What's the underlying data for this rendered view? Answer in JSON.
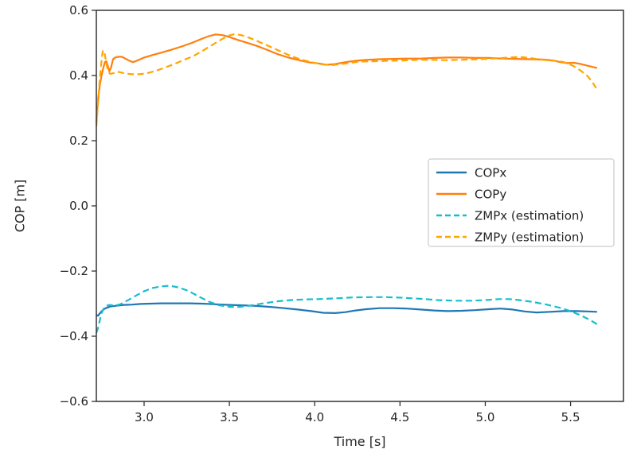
{
  "figure": {
    "background": "#ffffff",
    "text_color": "#262626",
    "spine_color": "#333333"
  },
  "chart_data": {
    "type": "line",
    "title": "",
    "xlabel": "Time [s]",
    "ylabel": "COP [m]",
    "xlim": [
      2.72,
      5.81
    ],
    "ylim": [
      -0.6,
      0.6
    ],
    "xticks": [
      3.0,
      3.5,
      4.0,
      4.5,
      5.0,
      5.5
    ],
    "yticks": [
      -0.6,
      -0.4,
      -0.2,
      0.0,
      0.2,
      0.4,
      0.6
    ],
    "grid": false,
    "legend": {
      "position": "center-right",
      "border_color": "#cccccc",
      "fill": "#ffffff"
    },
    "series": [
      {
        "name": "COPx",
        "color": "#1f77b4",
        "style": "solid",
        "points": [
          [
            2.72,
            -0.335
          ],
          [
            2.73,
            -0.337
          ],
          [
            2.74,
            -0.33
          ],
          [
            2.75,
            -0.324
          ],
          [
            2.77,
            -0.315
          ],
          [
            2.8,
            -0.309
          ],
          [
            2.84,
            -0.306
          ],
          [
            2.88,
            -0.304
          ],
          [
            2.93,
            -0.303
          ],
          [
            2.98,
            -0.301
          ],
          [
            3.04,
            -0.3
          ],
          [
            3.1,
            -0.299
          ],
          [
            3.18,
            -0.299
          ],
          [
            3.26,
            -0.299
          ],
          [
            3.34,
            -0.3
          ],
          [
            3.42,
            -0.302
          ],
          [
            3.5,
            -0.304
          ],
          [
            3.58,
            -0.305
          ],
          [
            3.66,
            -0.307
          ],
          [
            3.74,
            -0.31
          ],
          [
            3.82,
            -0.314
          ],
          [
            3.9,
            -0.318
          ],
          [
            3.98,
            -0.323
          ],
          [
            4.05,
            -0.328
          ],
          [
            4.12,
            -0.329
          ],
          [
            4.18,
            -0.326
          ],
          [
            4.24,
            -0.321
          ],
          [
            4.3,
            -0.317
          ],
          [
            4.38,
            -0.314
          ],
          [
            4.46,
            -0.314
          ],
          [
            4.54,
            -0.315
          ],
          [
            4.62,
            -0.318
          ],
          [
            4.7,
            -0.321
          ],
          [
            4.78,
            -0.323
          ],
          [
            4.86,
            -0.322
          ],
          [
            4.94,
            -0.32
          ],
          [
            5.02,
            -0.317
          ],
          [
            5.09,
            -0.315
          ],
          [
            5.16,
            -0.318
          ],
          [
            5.23,
            -0.324
          ],
          [
            5.3,
            -0.327
          ],
          [
            5.38,
            -0.325
          ],
          [
            5.46,
            -0.323
          ],
          [
            5.54,
            -0.323
          ],
          [
            5.6,
            -0.324
          ],
          [
            5.655,
            -0.325
          ]
        ]
      },
      {
        "name": "COPy",
        "color": "#ff7f0e",
        "style": "solid",
        "points": [
          [
            2.72,
            0.255
          ],
          [
            2.726,
            0.3
          ],
          [
            2.733,
            0.34
          ],
          [
            2.741,
            0.372
          ],
          [
            2.75,
            0.398
          ],
          [
            2.76,
            0.422
          ],
          [
            2.77,
            0.441
          ],
          [
            2.778,
            0.444
          ],
          [
            2.787,
            0.43
          ],
          [
            2.796,
            0.413
          ],
          [
            2.806,
            0.424
          ],
          [
            2.818,
            0.45
          ],
          [
            2.83,
            0.455
          ],
          [
            2.845,
            0.457
          ],
          [
            2.86,
            0.458
          ],
          [
            2.875,
            0.456
          ],
          [
            2.89,
            0.452
          ],
          [
            2.91,
            0.446
          ],
          [
            2.935,
            0.441
          ],
          [
            2.96,
            0.446
          ],
          [
            3.0,
            0.455
          ],
          [
            3.05,
            0.463
          ],
          [
            3.1,
            0.47
          ],
          [
            3.16,
            0.479
          ],
          [
            3.22,
            0.489
          ],
          [
            3.28,
            0.5
          ],
          [
            3.33,
            0.511
          ],
          [
            3.38,
            0.521
          ],
          [
            3.42,
            0.526
          ],
          [
            3.46,
            0.524
          ],
          [
            3.5,
            0.518
          ],
          [
            3.55,
            0.509
          ],
          [
            3.6,
            0.501
          ],
          [
            3.66,
            0.491
          ],
          [
            3.72,
            0.479
          ],
          [
            3.78,
            0.466
          ],
          [
            3.84,
            0.456
          ],
          [
            3.9,
            0.448
          ],
          [
            3.96,
            0.441
          ],
          [
            4.02,
            0.437
          ],
          [
            4.07,
            0.433
          ],
          [
            4.12,
            0.435
          ],
          [
            4.18,
            0.441
          ],
          [
            4.24,
            0.445
          ],
          [
            4.3,
            0.448
          ],
          [
            4.38,
            0.45
          ],
          [
            4.46,
            0.451
          ],
          [
            4.54,
            0.452
          ],
          [
            4.62,
            0.452
          ],
          [
            4.7,
            0.454
          ],
          [
            4.78,
            0.455
          ],
          [
            4.86,
            0.455
          ],
          [
            4.94,
            0.454
          ],
          [
            5.02,
            0.454
          ],
          [
            5.1,
            0.452
          ],
          [
            5.18,
            0.451
          ],
          [
            5.26,
            0.45
          ],
          [
            5.34,
            0.449
          ],
          [
            5.4,
            0.446
          ],
          [
            5.44,
            0.441
          ],
          [
            5.48,
            0.438
          ],
          [
            5.52,
            0.439
          ],
          [
            5.56,
            0.435
          ],
          [
            5.6,
            0.43
          ],
          [
            5.655,
            0.423
          ]
        ]
      },
      {
        "name": "ZMPx (estimation)",
        "color": "#17becf",
        "style": "dashed",
        "points": [
          [
            2.72,
            -0.39
          ],
          [
            2.73,
            -0.375
          ],
          [
            2.74,
            -0.352
          ],
          [
            2.75,
            -0.33
          ],
          [
            2.765,
            -0.313
          ],
          [
            2.78,
            -0.306
          ],
          [
            2.8,
            -0.304
          ],
          [
            2.83,
            -0.306
          ],
          [
            2.86,
            -0.302
          ],
          [
            2.9,
            -0.291
          ],
          [
            2.95,
            -0.276
          ],
          [
            3.0,
            -0.262
          ],
          [
            3.05,
            -0.252
          ],
          [
            3.1,
            -0.247
          ],
          [
            3.15,
            -0.245
          ],
          [
            3.2,
            -0.25
          ],
          [
            3.26,
            -0.261
          ],
          [
            3.32,
            -0.278
          ],
          [
            3.38,
            -0.294
          ],
          [
            3.44,
            -0.305
          ],
          [
            3.5,
            -0.31
          ],
          [
            3.56,
            -0.31
          ],
          [
            3.62,
            -0.306
          ],
          [
            3.7,
            -0.299
          ],
          [
            3.78,
            -0.293
          ],
          [
            3.86,
            -0.289
          ],
          [
            3.94,
            -0.287
          ],
          [
            4.02,
            -0.286
          ],
          [
            4.12,
            -0.284
          ],
          [
            4.22,
            -0.281
          ],
          [
            4.32,
            -0.28
          ],
          [
            4.42,
            -0.28
          ],
          [
            4.52,
            -0.282
          ],
          [
            4.62,
            -0.285
          ],
          [
            4.72,
            -0.289
          ],
          [
            4.82,
            -0.291
          ],
          [
            4.92,
            -0.291
          ],
          [
            5.0,
            -0.289
          ],
          [
            5.08,
            -0.286
          ],
          [
            5.14,
            -0.286
          ],
          [
            5.2,
            -0.289
          ],
          [
            5.28,
            -0.295
          ],
          [
            5.36,
            -0.303
          ],
          [
            5.44,
            -0.313
          ],
          [
            5.5,
            -0.323
          ],
          [
            5.56,
            -0.336
          ],
          [
            5.61,
            -0.349
          ],
          [
            5.655,
            -0.363
          ]
        ]
      },
      {
        "name": "ZMPy (estimation)",
        "color": "#ffa500",
        "style": "dashed",
        "points": [
          [
            2.72,
            0.245
          ],
          [
            2.728,
            0.3
          ],
          [
            2.736,
            0.36
          ],
          [
            2.744,
            0.41
          ],
          [
            2.752,
            0.455
          ],
          [
            2.758,
            0.475
          ],
          [
            2.765,
            0.477
          ],
          [
            2.772,
            0.458
          ],
          [
            2.78,
            0.432
          ],
          [
            2.79,
            0.412
          ],
          [
            2.8,
            0.405
          ],
          [
            2.82,
            0.407
          ],
          [
            2.84,
            0.412
          ],
          [
            2.86,
            0.41
          ],
          [
            2.89,
            0.406
          ],
          [
            2.93,
            0.404
          ],
          [
            2.97,
            0.404
          ],
          [
            3.01,
            0.406
          ],
          [
            3.06,
            0.413
          ],
          [
            3.11,
            0.422
          ],
          [
            3.17,
            0.434
          ],
          [
            3.23,
            0.447
          ],
          [
            3.29,
            0.46
          ],
          [
            3.35,
            0.478
          ],
          [
            3.41,
            0.497
          ],
          [
            3.46,
            0.513
          ],
          [
            3.5,
            0.523
          ],
          [
            3.53,
            0.527
          ],
          [
            3.57,
            0.524
          ],
          [
            3.62,
            0.515
          ],
          [
            3.68,
            0.502
          ],
          [
            3.74,
            0.488
          ],
          [
            3.8,
            0.474
          ],
          [
            3.86,
            0.46
          ],
          [
            3.92,
            0.449
          ],
          [
            3.98,
            0.441
          ],
          [
            4.05,
            0.434
          ],
          [
            4.1,
            0.432
          ],
          [
            4.16,
            0.435
          ],
          [
            4.22,
            0.44
          ],
          [
            4.28,
            0.443
          ],
          [
            4.36,
            0.444
          ],
          [
            4.44,
            0.445
          ],
          [
            4.52,
            0.446
          ],
          [
            4.6,
            0.448
          ],
          [
            4.68,
            0.448
          ],
          [
            4.76,
            0.447
          ],
          [
            4.84,
            0.448
          ],
          [
            4.92,
            0.449
          ],
          [
            5.0,
            0.451
          ],
          [
            5.08,
            0.453
          ],
          [
            5.14,
            0.455
          ],
          [
            5.2,
            0.457
          ],
          [
            5.26,
            0.454
          ],
          [
            5.32,
            0.449
          ],
          [
            5.38,
            0.446
          ],
          [
            5.44,
            0.444
          ],
          [
            5.48,
            0.438
          ],
          [
            5.52,
            0.428
          ],
          [
            5.56,
            0.415
          ],
          [
            5.6,
            0.398
          ],
          [
            5.63,
            0.378
          ],
          [
            5.655,
            0.357
          ]
        ]
      }
    ]
  }
}
